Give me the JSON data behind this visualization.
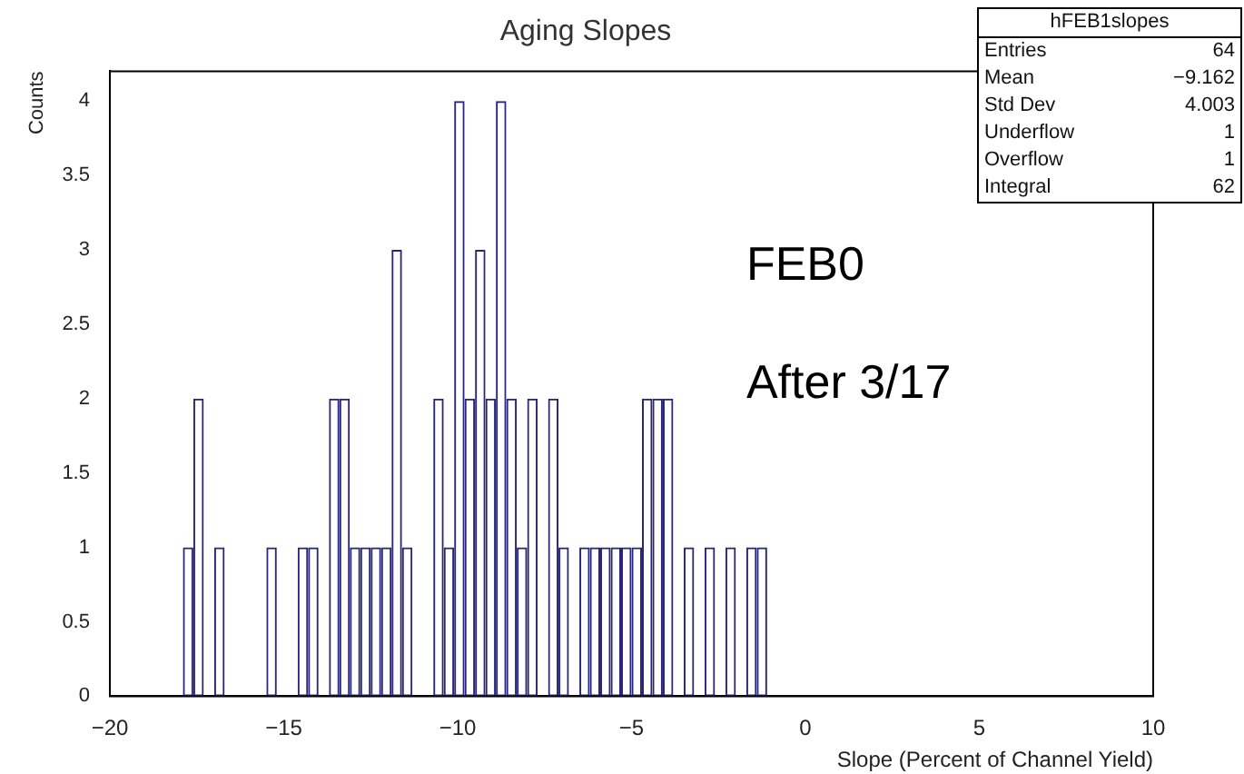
{
  "chart_data": {
    "type": "histogram",
    "title": "Aging Slopes",
    "xlabel": "Slope (Percent of Channel Yield)",
    "ylabel": "Counts",
    "bins": [
      -20,
      -19.7,
      -19.4,
      -19.1,
      -18.8,
      -18.5,
      -18.2,
      -17.9,
      -17.6,
      -17.3,
      -17,
      -16.7,
      -16.4,
      -16.1,
      -15.8,
      -15.5,
      -15.2,
      -14.9,
      -14.6,
      -14.3,
      -14,
      -13.7,
      -13.4,
      -13.1,
      -12.8,
      -12.5,
      -12.2,
      -11.9,
      -11.6,
      -11.3,
      -11,
      -10.7,
      -10.4,
      -10.1,
      -9.8,
      -9.5,
      -9.2,
      -8.9,
      -8.6,
      -8.3,
      -8,
      -7.7,
      -7.4,
      -7.1,
      -6.8,
      -6.5,
      -6.2,
      -5.9,
      -5.6,
      -5.3,
      -5,
      -4.7,
      -4.4,
      -4.1,
      -3.8,
      -3.5,
      -3.2,
      -2.9,
      -2.6,
      -2.3,
      -2,
      -1.7,
      -1.4,
      -1.1,
      -0.8,
      -0.5,
      -0.2,
      0.1,
      0.4,
      0.7,
      1,
      1.3,
      1.6,
      1.9,
      2.2,
      2.5,
      2.8,
      3.1,
      3.4,
      3.7,
      4,
      4.3,
      4.6,
      4.9,
      5.2,
      5.5,
      5.8,
      6.1,
      6.4,
      6.7,
      7,
      7.3,
      7.6,
      7.9,
      8.2,
      8.5,
      8.8,
      9.1,
      9.4,
      9.7,
      10
    ],
    "values": [
      0,
      0,
      0,
      0,
      0,
      0,
      0,
      1,
      2,
      0,
      1,
      0,
      0,
      0,
      0,
      1,
      0,
      0,
      1,
      1,
      0,
      2,
      2,
      1,
      1,
      1,
      1,
      3,
      1,
      0,
      0,
      2,
      1,
      4,
      2,
      3,
      2,
      4,
      2,
      1,
      2,
      0,
      2,
      1,
      0,
      1,
      1,
      1,
      1,
      1,
      1,
      2,
      2,
      2,
      0,
      1,
      0,
      1,
      0,
      1,
      0,
      1,
      1,
      0,
      0,
      0,
      0,
      0,
      0,
      0,
      0,
      0,
      0,
      0,
      0,
      0,
      0,
      0,
      0,
      0,
      0,
      0,
      0,
      0,
      0,
      0,
      0,
      0,
      0,
      0,
      0,
      0,
      0,
      0,
      0,
      0,
      0,
      0,
      0,
      0
    ],
    "color": "#26267a",
    "xlim": [
      -20,
      10
    ],
    "xticks": [
      {
        "value": -20,
        "label": "−20"
      },
      {
        "value": -15,
        "label": "−15"
      },
      {
        "value": -10,
        "label": "−10"
      },
      {
        "value": -5,
        "label": "−5"
      },
      0,
      5,
      10
    ],
    "ylim": [
      0,
      4.2
    ],
    "yticks": [
      0,
      0.5,
      1,
      1.5,
      2,
      2.5,
      3,
      3.5,
      4
    ],
    "grid": false,
    "legend": false,
    "annotations": [
      "FEB0",
      "After 3/17",
      "hFEB1slopes",
      "Entries",
      "64",
      "Mean",
      "−9.162",
      "Std Dev",
      "4.003",
      "Underflow",
      "1",
      "Overflow",
      "1",
      "Integral",
      "62"
    ]
  }
}
